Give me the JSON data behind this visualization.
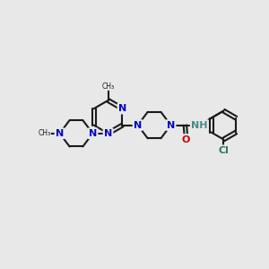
{
  "bg_color": "#e8e8e8",
  "bond_color": "#1a1a1a",
  "N_color": "#0000cc",
  "O_color": "#cc0000",
  "Cl_color": "#2e7a5a",
  "H_color": "#4a8a8a",
  "line_width": 1.5,
  "font_size_atom": 8,
  "figsize": [
    3.0,
    3.0
  ],
  "dpi": 100,
  "xlim": [
    0,
    12
  ],
  "ylim": [
    0,
    12
  ]
}
